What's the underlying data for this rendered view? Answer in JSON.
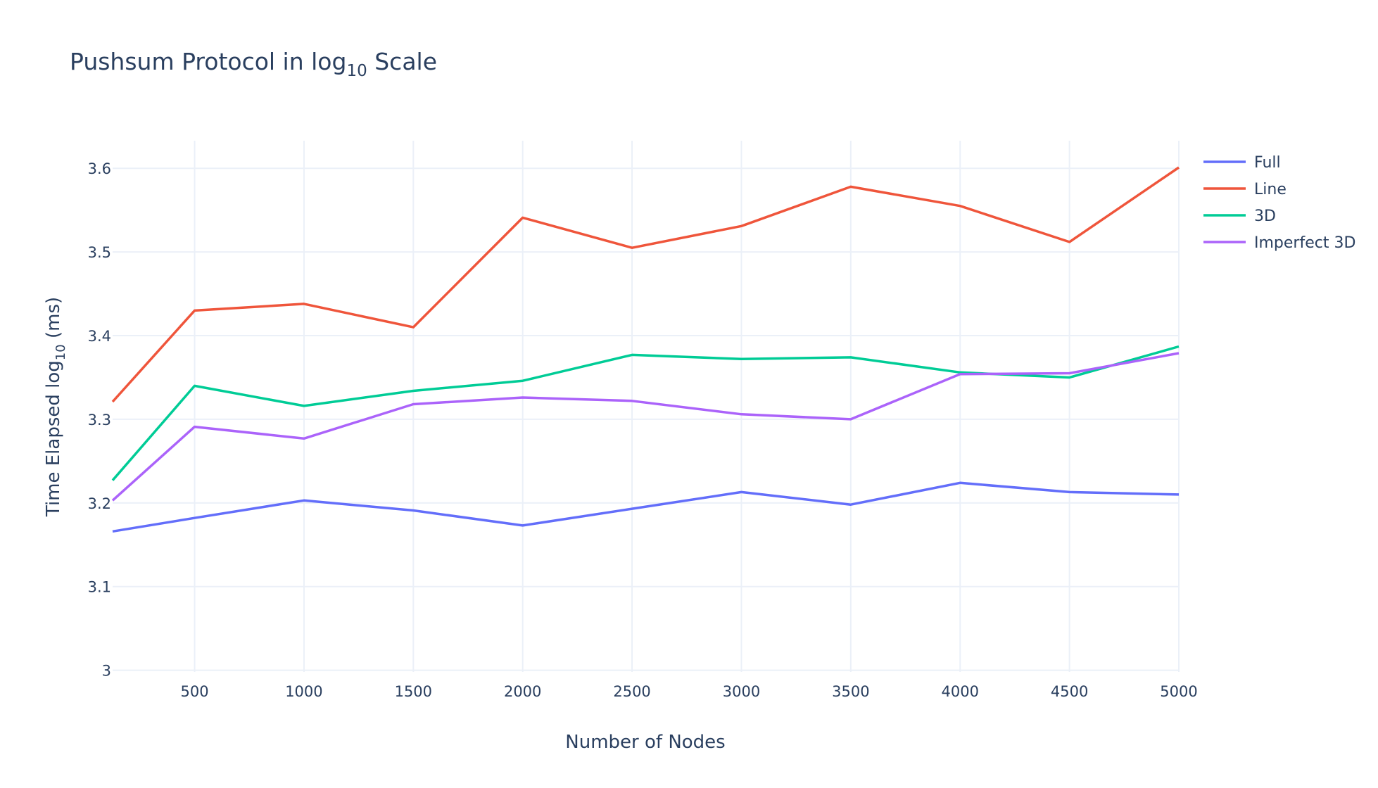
{
  "chart_data": {
    "type": "line",
    "title": "Pushsum Protocol in log",
    "title_subscript": "10",
    "title_suffix": " Scale",
    "xlabel": "Number of Nodes",
    "ylabel": "Time Elapsed log",
    "ylabel_subscript": "10",
    "ylabel_suffix": " (ms)",
    "xlim": [
      125,
      5000
    ],
    "ylim": [
      2.998,
      3.633
    ],
    "x_ticks": [
      500,
      1000,
      1500,
      2000,
      2500,
      3000,
      3500,
      4000,
      4500,
      5000
    ],
    "y_ticks": [
      3,
      3.1,
      3.2,
      3.3,
      3.4,
      3.5,
      3.6
    ],
    "y_tick_labels": [
      "3",
      "3.1",
      "3.2",
      "3.3",
      "3.4",
      "3.5",
      "3.6"
    ],
    "grid": true,
    "legend_position": "top-right",
    "x": [
      125,
      500,
      1000,
      1500,
      2000,
      2500,
      3000,
      3500,
      4000,
      4500,
      5000
    ],
    "series": [
      {
        "name": "Full",
        "color": "#636efa",
        "values": [
          3.166,
          3.182,
          3.203,
          3.191,
          3.173,
          3.193,
          3.213,
          3.198,
          3.224,
          3.213,
          3.21
        ]
      },
      {
        "name": "Line",
        "color": "#ef553b",
        "values": [
          3.321,
          3.43,
          3.438,
          3.41,
          3.541,
          3.505,
          3.531,
          3.578,
          3.555,
          3.512,
          3.601
        ]
      },
      {
        "name": "3D",
        "color": "#00cc96",
        "values": [
          3.227,
          3.34,
          3.316,
          3.334,
          3.346,
          3.377,
          3.372,
          3.374,
          3.356,
          3.35,
          3.387
        ]
      },
      {
        "name": "Imperfect 3D",
        "color": "#ab63fa",
        "values": [
          3.203,
          3.291,
          3.277,
          3.318,
          3.326,
          3.322,
          3.306,
          3.3,
          3.354,
          3.355,
          3.379
        ]
      }
    ]
  }
}
